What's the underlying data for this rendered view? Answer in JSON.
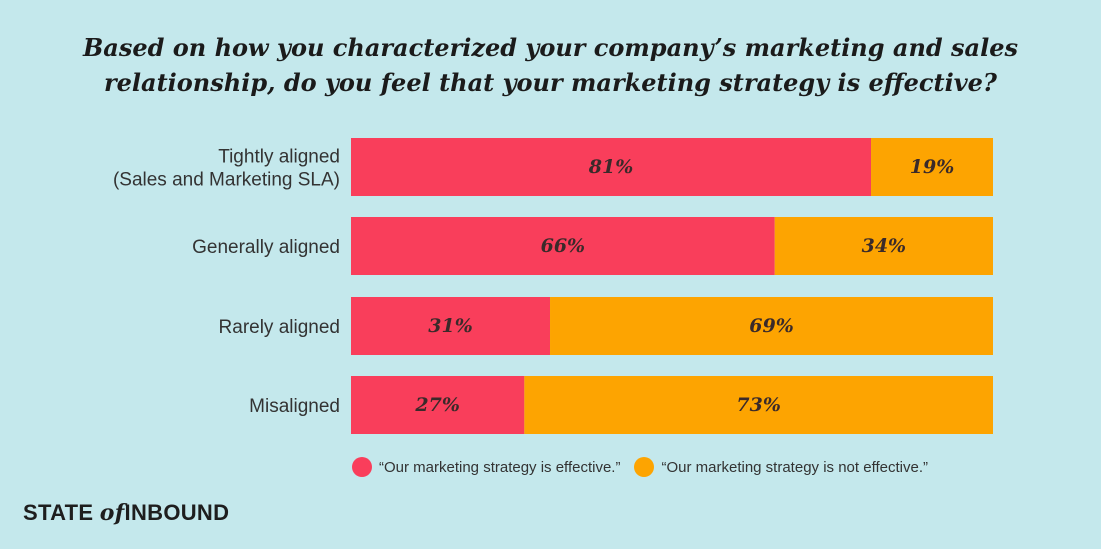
{
  "chart_data": {
    "type": "bar",
    "orientation": "horizontal",
    "stacked": true,
    "title_lines": [
      "Based on how you characterized your company’s marketing and sales",
      "relationship, do you feel that your marketing strategy is effective?"
    ],
    "categories": [
      [
        "Tightly aligned",
        "(Sales and Marketing SLA)"
      ],
      [
        "Generally aligned"
      ],
      [
        "Rarely aligned"
      ],
      [
        "Misaligned"
      ]
    ],
    "series": [
      {
        "name": "“Our marketing strategy is effective.”",
        "color": "#f93e5b",
        "values": [
          81,
          66,
          31,
          27
        ],
        "labels": [
          "81%",
          "66%",
          "31%",
          "27%"
        ]
      },
      {
        "name": "“Our marketing strategy is not effective.”",
        "color": "#fda401",
        "values": [
          19,
          34,
          69,
          73
        ],
        "labels": [
          "19%",
          "34%",
          "69%",
          "73%"
        ]
      }
    ],
    "xlim": [
      0,
      100
    ],
    "legend_position": "bottom"
  },
  "brand": {
    "prefix": "STATE",
    "of": "of",
    "suffix": "INBOUND"
  }
}
